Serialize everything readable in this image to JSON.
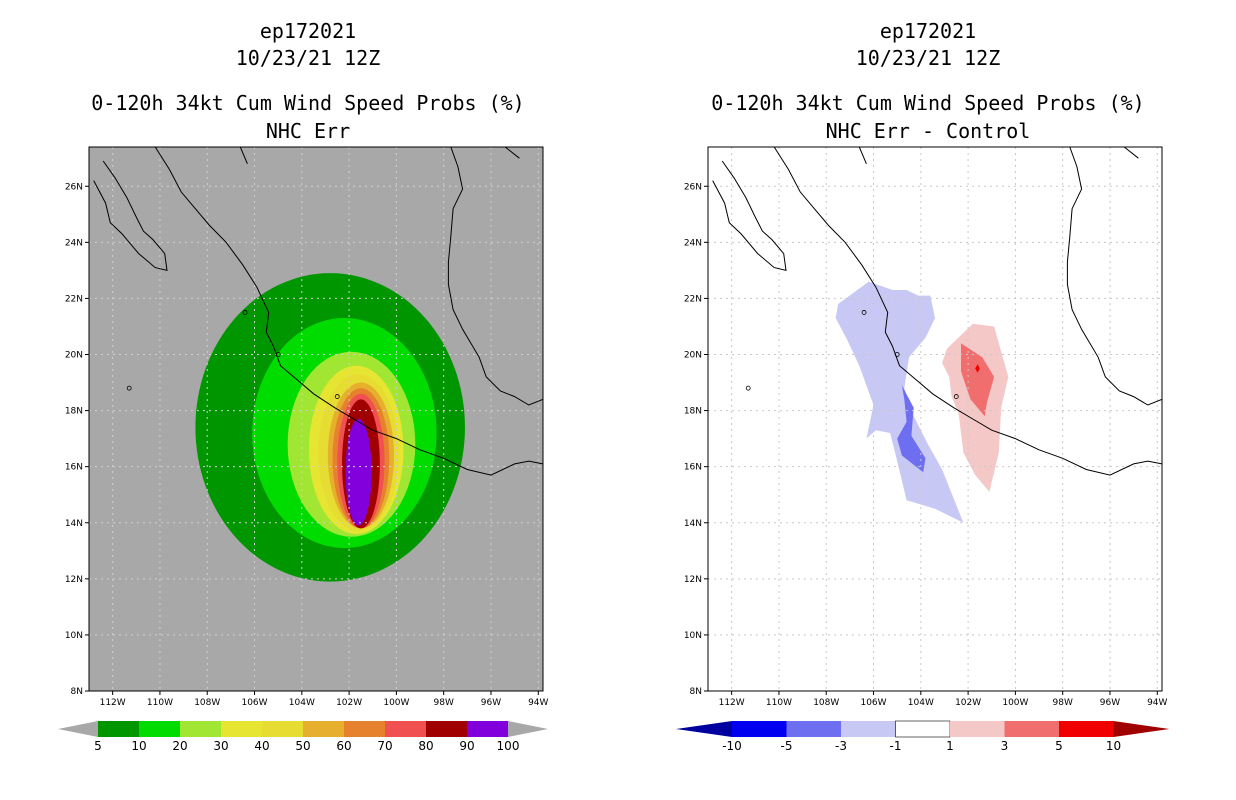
{
  "chart_data": [
    {
      "type": "heatmap",
      "storm_id": "ep172021",
      "date": "10/23/21 12Z",
      "title": "0-120h 34kt Cum Wind Speed Probs (%)",
      "subtitle": "NHC Err",
      "xlim": [
        -113,
        -93.8
      ],
      "ylim": [
        8,
        27.4
      ],
      "x_ticks": [
        "112W",
        "110W",
        "108W",
        "106W",
        "104W",
        "102W",
        "100W",
        "98W",
        "96W",
        "94W"
      ],
      "y_ticks": [
        "8N",
        "10N",
        "12N",
        "14N",
        "16N",
        "18N",
        "20N",
        "22N",
        "24N",
        "26N"
      ],
      "background_color": "#a8a8a8",
      "colorbar": {
        "labels": [
          "5",
          "10",
          "20",
          "30",
          "40",
          "50",
          "60",
          "70",
          "80",
          "90",
          "100"
        ],
        "colors": [
          "#009600",
          "#00dc00",
          "#a0e632",
          "#e6e632",
          "#e6dc32",
          "#e6af2d",
          "#e6822d",
          "#f05050",
          "#a00000",
          "#8200dc"
        ]
      },
      "contours": [
        {
          "level": 5,
          "color": "#009600",
          "center": [
            -102.8,
            17.4
          ],
          "rx": 5.7,
          "ry": 5.5
        },
        {
          "level": 10,
          "color": "#00dc00",
          "center": [
            -102.2,
            17.2
          ],
          "rx": 3.9,
          "ry": 4.1
        },
        {
          "level": 20,
          "color": "#a0e632",
          "center": [
            -101.9,
            16.8
          ],
          "rx": 2.7,
          "ry": 3.3
        },
        {
          "level": 30,
          "color": "#e6e632",
          "center": [
            -101.7,
            16.6
          ],
          "rx": 2.0,
          "ry": 3.0
        },
        {
          "level": 40,
          "color": "#e6dc32",
          "center": [
            -101.6,
            16.5
          ],
          "rx": 1.7,
          "ry": 2.8
        },
        {
          "level": 50,
          "color": "#e6af2d",
          "center": [
            -101.5,
            16.4
          ],
          "rx": 1.4,
          "ry": 2.6
        },
        {
          "level": 60,
          "color": "#e6822d",
          "center": [
            -101.5,
            16.3
          ],
          "rx": 1.2,
          "ry": 2.5
        },
        {
          "level": 70,
          "color": "#f05050",
          "center": [
            -101.5,
            16.2
          ],
          "rx": 1.0,
          "ry": 2.4
        },
        {
          "level": 80,
          "color": "#a00000",
          "center": [
            -101.5,
            16.1
          ],
          "rx": 0.8,
          "ry": 2.3
        },
        {
          "level": 90,
          "color": "#8200dc",
          "center": [
            -101.6,
            15.8
          ],
          "rx": 0.55,
          "ry": 1.9
        }
      ]
    },
    {
      "type": "heatmap",
      "storm_id": "ep172021",
      "date": "10/23/21 12Z",
      "title": "0-120h 34kt Cum Wind Speed Probs (%)",
      "subtitle": "NHC Err - Control",
      "xlim": [
        -113,
        -93.8
      ],
      "ylim": [
        8,
        27.4
      ],
      "x_ticks": [
        "112W",
        "110W",
        "108W",
        "106W",
        "104W",
        "102W",
        "100W",
        "98W",
        "96W",
        "94W"
      ],
      "y_ticks": [
        "8N",
        "10N",
        "12N",
        "14N",
        "16N",
        "18N",
        "20N",
        "22N",
        "24N",
        "26N"
      ],
      "background_color": "#ffffff",
      "colorbar": {
        "labels": [
          "-10",
          "-5",
          "-3",
          "-1",
          "1",
          "3",
          "5",
          "10"
        ],
        "colors": [
          "#0000a0",
          "#0000f0",
          "#6e6ef0",
          "#c8c8f5",
          "#ffffff",
          "#f5c8c8",
          "#f06e6e",
          "#f00000",
          "#a00000"
        ]
      },
      "contours": [
        {
          "level": -1,
          "color": "#c8c8f5",
          "lon": [
            -107.5,
            -106.2,
            -105.2,
            -104.6,
            -104.1,
            -103.6,
            -103.4,
            -103.8,
            -104.5,
            -104.7,
            -104.3,
            -103.7,
            -103.1,
            -102.2,
            -103.4,
            -104.6,
            -105.0,
            -105.3,
            -105.9,
            -106.3,
            -106.0,
            -106.6,
            -107.1,
            -107.6
          ],
          "lat": [
            21.8,
            22.6,
            22.3,
            22.3,
            22.1,
            22.1,
            21.3,
            20.6,
            19.9,
            18.8,
            17.8,
            16.8,
            15.9,
            14.0,
            14.5,
            14.8,
            16.2,
            17.2,
            17.3,
            17.0,
            18.2,
            19.6,
            20.5,
            21.3
          ]
        },
        {
          "level": -3,
          "color": "#6e6ef0",
          "lon": [
            -104.8,
            -104.3,
            -104.4,
            -103.8,
            -103.9,
            -104.8,
            -105.0,
            -104.6,
            -104.7
          ],
          "lat": [
            18.9,
            18.1,
            17.1,
            16.3,
            15.8,
            16.4,
            17.0,
            17.6,
            18.4
          ]
        },
        {
          "level": 1,
          "color": "#f5c8c8",
          "lon": [
            -102.9,
            -101.8,
            -100.9,
            -100.3,
            -100.6,
            -100.7,
            -101.1,
            -101.7,
            -102.2,
            -102.4,
            -102.7,
            -102.8,
            -103.1
          ],
          "lat": [
            20.2,
            21.1,
            21.0,
            19.2,
            18.1,
            16.5,
            15.1,
            15.7,
            16.5,
            17.9,
            18.5,
            19.2,
            19.7
          ]
        },
        {
          "level": 3,
          "color": "#f06e6e",
          "lon": [
            -102.3,
            -101.4,
            -100.9,
            -101.2,
            -101.3,
            -101.9,
            -102.3
          ],
          "lat": [
            20.4,
            19.9,
            19.2,
            18.3,
            17.8,
            18.4,
            19.4
          ]
        },
        {
          "level": 5,
          "color": "#f00000",
          "lon": [
            -101.6,
            -101.5,
            -101.6,
            -101.7
          ],
          "lat": [
            19.65,
            19.5,
            19.35,
            19.5
          ]
        }
      ]
    }
  ]
}
